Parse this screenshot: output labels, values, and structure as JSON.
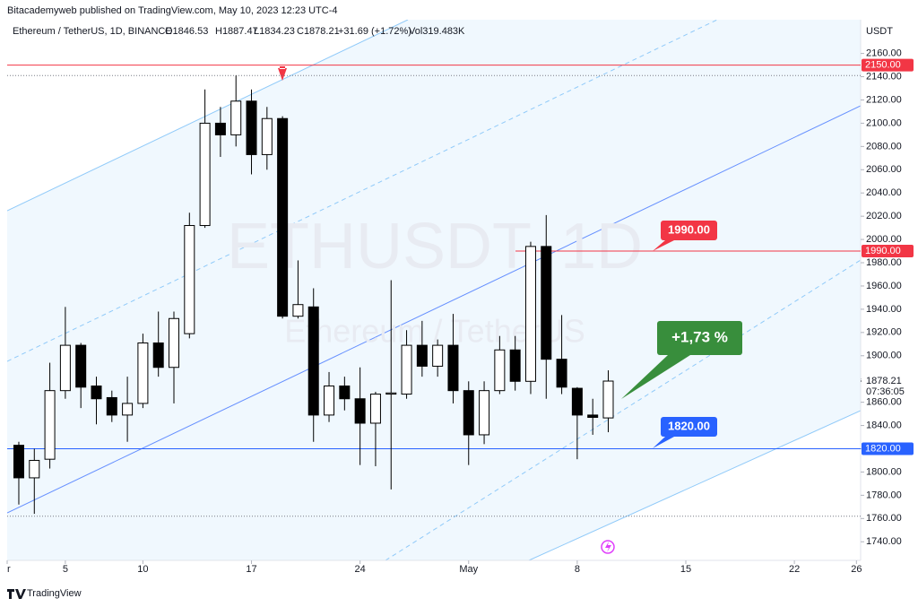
{
  "header": {
    "publisher": "Bitacademyweb published on TradingView.com, May 10, 2023 12:23 UTC-4",
    "symbol": "Ethereum / TetherUS, 1D, BINANCE",
    "open": "O1846.53",
    "high": "H1887.47",
    "low": "L1834.23",
    "close": "C1878.21",
    "change": "+31.69 (+1.72%)",
    "volume": "Vol319.483K"
  },
  "footer": {
    "brand": "TradingView"
  },
  "chart_data": {
    "type": "candlestick",
    "watermark": "ETHUSDT, 1D",
    "watermark_sub": "Ethereum / TetherUS",
    "y_unit": "USDT",
    "ylim": [
      1724,
      2189
    ],
    "xlim": [
      -0.75,
      54.27
    ],
    "xticks": [
      {
        "value": -1,
        "label": "r"
      },
      {
        "value": 3,
        "label": "5"
      },
      {
        "value": 8,
        "label": "10"
      },
      {
        "value": 15,
        "label": "17"
      },
      {
        "value": 22,
        "label": "24"
      },
      {
        "value": 29,
        "label": "May"
      },
      {
        "value": 36,
        "label": "8"
      },
      {
        "value": 43,
        "label": "15"
      },
      {
        "value": 50,
        "label": "22"
      },
      {
        "value": 54,
        "label": "26"
      }
    ],
    "yticks": [
      {
        "value": 1740,
        "label": "1740.00"
      },
      {
        "value": 1760,
        "label": "1760.00"
      },
      {
        "value": 1780,
        "label": "1780.00"
      },
      {
        "value": 1800,
        "label": "1800.00"
      },
      {
        "value": 1820,
        "label": "1820.00"
      },
      {
        "value": 1840,
        "label": "1840.00"
      },
      {
        "value": 1860,
        "label": "1860.00"
      },
      {
        "value": 1880,
        "label": "1880.00"
      },
      {
        "value": 1900,
        "label": "1900.00"
      },
      {
        "value": 1920,
        "label": "1920.00"
      },
      {
        "value": 1940,
        "label": "1940.00"
      },
      {
        "value": 1960,
        "label": "1960.00"
      },
      {
        "value": 1980,
        "label": "1980.00"
      },
      {
        "value": 2000,
        "label": "2000.00"
      },
      {
        "value": 2020,
        "label": "2020.00"
      },
      {
        "value": 2040,
        "label": "2040.00"
      },
      {
        "value": 2060,
        "label": "2060.00"
      },
      {
        "value": 2080,
        "label": "2080.00"
      },
      {
        "value": 2100,
        "label": "2100.00"
      },
      {
        "value": 2120,
        "label": "2120.00"
      },
      {
        "value": 2140,
        "label": "2140.00"
      },
      {
        "value": 2160,
        "label": "2160.00"
      }
    ],
    "grid": false,
    "up_color": "#ffffff",
    "down_color": "#000000",
    "open": [
      1823,
      1795,
      1811,
      1870,
      1909,
      1874,
      1864,
      1849,
      1859,
      1911,
      1890,
      1919,
      2012,
      2100,
      2090,
      2119,
      2073,
      2104,
      1934,
      1942,
      1849,
      1874,
      1863,
      1842,
      1867,
      1867,
      1909,
      1891,
      1909,
      1870,
      1832,
      1870,
      1905,
      1878,
      1994,
      1897,
      1872,
      1849,
      1846.53
    ],
    "high": [
      1826,
      1820,
      1894,
      1942,
      1911,
      1882,
      1870,
      1882,
      1919,
      1938,
      1938,
      2023,
      2129,
      2114,
      2141,
      2129,
      2114,
      2106,
      1982,
      1958,
      1886,
      1882,
      1890,
      1869,
      1965,
      1922,
      1930,
      1914,
      1936,
      1878,
      1878,
      1917,
      1917,
      1998,
      2021,
      1935,
      1873,
      1863,
      1887.47
    ],
    "low": [
      1772,
      1764,
      1803,
      1863,
      1855,
      1841,
      1843,
      1826,
      1855,
      1882,
      1859,
      1915,
      2010,
      2071,
      2080,
      2056,
      2060,
      1932,
      1932,
      1826,
      1843,
      1853,
      1806,
      1805,
      1785,
      1863,
      1882,
      1882,
      1859,
      1806,
      1824,
      1867,
      1870,
      1867,
      1863,
      1867,
      1811,
      1832,
      1834.23
    ],
    "close": [
      1795,
      1810,
      1870,
      1909,
      1873,
      1863,
      1849,
      1859,
      1911,
      1890,
      1932,
      2012,
      2100,
      2090,
      2119,
      2073,
      2104,
      1934,
      1944,
      1849,
      1874,
      1863,
      1842,
      1867,
      1868,
      1909,
      1891,
      1909,
      1870,
      1832,
      1870,
      1905,
      1878,
      1994,
      1897,
      1873,
      1849,
      1847,
      1878.21
    ],
    "levels": [
      {
        "value": 2150,
        "label": "2150.00",
        "color": "#f23645"
      },
      {
        "value": 1990,
        "label": "1990.00",
        "color": "#f23645"
      },
      {
        "value": 1820,
        "label": "1820.00",
        "color": "#2962ff"
      }
    ],
    "range_lines": [
      2141,
      1762
    ],
    "last_price": {
      "value": 1878.21,
      "label": "1878.21",
      "countdown": "07:36:05"
    },
    "callouts": [
      {
        "text": "1990.00",
        "color": "#f23645"
      },
      {
        "text": "1820.00",
        "color": "#2962ff"
      },
      {
        "text": "+1,73 %",
        "color": "#388e3c"
      }
    ]
  }
}
